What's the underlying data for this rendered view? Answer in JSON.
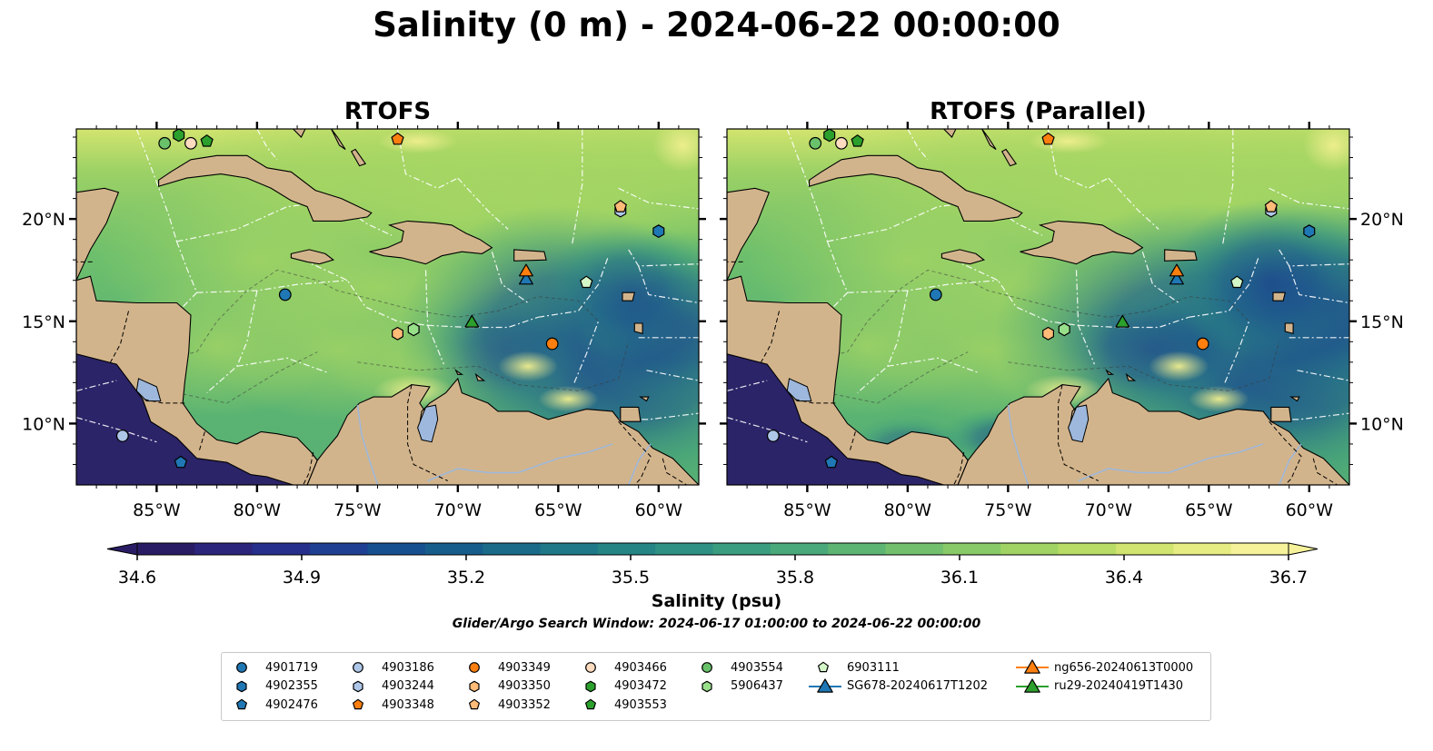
{
  "title": "Salinity (0 m) - 2024-06-22 00:00:00",
  "chart_data": {
    "type": "heatmap",
    "variable": "Salinity",
    "depth": "0 m",
    "time": "2024-06-22 00:00:00",
    "panels": [
      {
        "title": "RTOFS"
      },
      {
        "title": "RTOFS (Parallel)"
      }
    ],
    "xlim": [
      -89,
      -58
    ],
    "ylim": [
      7,
      24.4
    ],
    "xticks": [
      {
        "value": -85,
        "label": "85°W"
      },
      {
        "value": -80,
        "label": "80°W"
      },
      {
        "value": -75,
        "label": "75°W"
      },
      {
        "value": -70,
        "label": "70°W"
      },
      {
        "value": -65,
        "label": "65°W"
      },
      {
        "value": -60,
        "label": "60°W"
      }
    ],
    "yticks": [
      {
        "value": 10,
        "label": "10°N"
      },
      {
        "value": 15,
        "label": "15°N"
      },
      {
        "value": 20,
        "label": "20°N"
      }
    ],
    "colorbar": {
      "label": "Salinity (psu)",
      "min": 34.6,
      "max": 36.7,
      "extend": "both",
      "ticks": [
        "34.6",
        "34.9",
        "35.2",
        "35.5",
        "35.8",
        "36.1",
        "36.4",
        "36.7"
      ],
      "colors": [
        "#2a1c64",
        "#2b257c",
        "#262f8c",
        "#1f3f92",
        "#17508f",
        "#165d8c",
        "#196b89",
        "#1e7887",
        "#258585",
        "#2e9183",
        "#3a9d7f",
        "#4aa97a",
        "#5db574",
        "#72c06e",
        "#88ca68",
        "#a0d364",
        "#b8dc66",
        "#d0e46f",
        "#e6ec81",
        "#f6f29a"
      ]
    },
    "search_window": "Glider/Argo Search Window: 2024-06-17 01:00:00 to 2024-06-22 00:00:00",
    "observations": [
      {
        "name": "4901719",
        "marker": "circle",
        "color": "#1f77b4",
        "lon": -78.6,
        "lat": 16.3
      },
      {
        "name": "4902355",
        "marker": "hexagon",
        "color": "#1f77b4",
        "lon": -60.0,
        "lat": 19.4
      },
      {
        "name": "4902476",
        "marker": "pentagon",
        "color": "#1f77b4",
        "lon": -83.8,
        "lat": 8.1
      },
      {
        "name": "4903186",
        "marker": "circle",
        "color": "#aec7e8",
        "lon": -86.7,
        "lat": 9.4
      },
      {
        "name": "4903244",
        "marker": "hexagon",
        "color": "#aec7e8",
        "lon": -61.9,
        "lat": 20.4
      },
      {
        "name": "4903348",
        "marker": "pentagon",
        "color": "#ff7f0e",
        "lon": -73.0,
        "lat": 23.9
      },
      {
        "name": "4903349",
        "marker": "circle",
        "color": "#ff7f0e",
        "lon": -65.3,
        "lat": 13.9
      },
      {
        "name": "4903350",
        "marker": "hexagon",
        "color": "#ffbb78",
        "lon": -73.0,
        "lat": 14.4
      },
      {
        "name": "4903352",
        "marker": "pentagon",
        "color": "#ffbb78",
        "lon": -61.9,
        "lat": 20.6
      },
      {
        "name": "4903466",
        "marker": "circle",
        "color": "#ffdcc0",
        "lon": -83.3,
        "lat": 23.7
      },
      {
        "name": "4903472",
        "marker": "hexagon",
        "color": "#2ca02c",
        "lon": -83.9,
        "lat": 24.1
      },
      {
        "name": "4903553",
        "marker": "pentagon",
        "color": "#2ca02c",
        "lon": -82.5,
        "lat": 23.8
      },
      {
        "name": "4903554",
        "marker": "circle",
        "color": "#69c26a",
        "lon": -84.6,
        "lat": 23.7
      },
      {
        "name": "5906437",
        "marker": "hexagon",
        "color": "#98df8a",
        "lon": -72.2,
        "lat": 14.6
      },
      {
        "name": "6903111",
        "marker": "pentagon",
        "color": "#d4f7c8",
        "lon": -63.6,
        "lat": 16.9
      },
      {
        "name": "SG678-20240617T1202",
        "marker": "triangle",
        "color": "#1f77b4",
        "lon": -66.6,
        "lat": 17.1
      },
      {
        "name": "ng656-20240613T0000",
        "marker": "triangle",
        "color": "#ff7f0e",
        "lon": -66.6,
        "lat": 17.5
      },
      {
        "name": "ru29-20240419T1430",
        "marker": "triangle",
        "color": "#2ca02c",
        "lon": -69.3,
        "lat": 15.0
      }
    ]
  },
  "legend": {
    "columns": [
      [
        "4901719",
        "4902355",
        "4902476"
      ],
      [
        "4903186",
        "4903244",
        "4903348"
      ],
      [
        "4903349",
        "4903350",
        "4903352"
      ],
      [
        "4903466",
        "4903472",
        "4903553"
      ],
      [
        "4903554",
        "5906437"
      ],
      [
        "6903111",
        "SG678-20240617T1202"
      ],
      [
        "ng656-20240613T0000",
        "ru29-20240419T1430"
      ]
    ]
  },
  "colors": {
    "land": "#d2b48c",
    "lakes": "#9db8dc",
    "eez_lines": "#ffffff",
    "coast": "#000000"
  }
}
